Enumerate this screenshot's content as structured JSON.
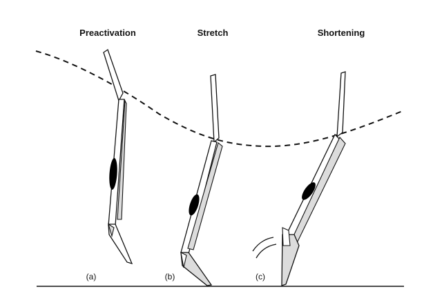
{
  "phases": [
    {
      "title": "Preactivation",
      "label": "(a)"
    },
    {
      "title": "Stretch",
      "label": "(b)"
    },
    {
      "title": "Shortening",
      "label": "(c)"
    }
  ],
  "colors": {
    "line": "#111111",
    "bone_fill": "#ffffff",
    "muscle_fill": "#dcdcdc",
    "belly_fill": "#000000",
    "background": "#ffffff"
  }
}
